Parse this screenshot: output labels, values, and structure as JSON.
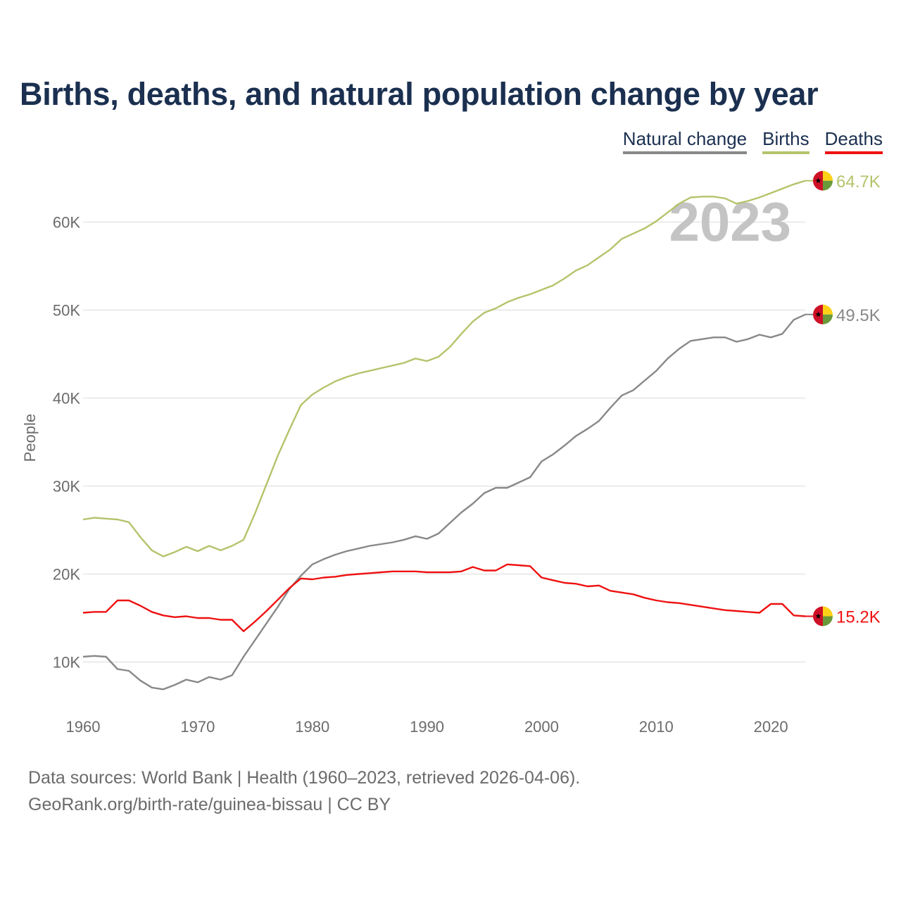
{
  "title": "Births, deaths, and natural population change by year",
  "legend": {
    "natural_change": "Natural change",
    "births": "Births",
    "deaths": "Deaths"
  },
  "colors": {
    "natural_change": "#888888",
    "births": "#b3c46b",
    "deaths": "#ee1111",
    "title": "#1b3050",
    "grid": "#e6e6e6",
    "year_watermark": "#c4c4c4",
    "flag_red": "#ce1126",
    "flag_yellow": "#fcd116",
    "flag_green": "#6a9a3a",
    "flag_star": "#000000"
  },
  "year_watermark": "2023",
  "chart_data": {
    "type": "line",
    "title": "Births, deaths, and natural population change by year",
    "xlabel": "",
    "ylabel": "People",
    "xlim": [
      1960,
      2023
    ],
    "ylim": [
      3000,
      67000
    ],
    "x_ticks": [
      1960,
      1970,
      1980,
      1990,
      2000,
      2010,
      2020
    ],
    "y_ticks": [
      10000,
      20000,
      30000,
      40000,
      50000,
      60000
    ],
    "y_tick_labels": [
      "10K",
      "20K",
      "30K",
      "40K",
      "50K",
      "60K"
    ],
    "x": [
      1960,
      1961,
      1962,
      1963,
      1964,
      1965,
      1966,
      1967,
      1968,
      1969,
      1970,
      1971,
      1972,
      1973,
      1974,
      1975,
      1976,
      1977,
      1978,
      1979,
      1980,
      1981,
      1982,
      1983,
      1984,
      1985,
      1986,
      1987,
      1988,
      1989,
      1990,
      1991,
      1992,
      1993,
      1994,
      1995,
      1996,
      1997,
      1998,
      1999,
      2000,
      2001,
      2002,
      2003,
      2004,
      2005,
      2006,
      2007,
      2008,
      2009,
      2010,
      2011,
      2012,
      2013,
      2014,
      2015,
      2016,
      2017,
      2018,
      2019,
      2020,
      2021,
      2022,
      2023
    ],
    "series": [
      {
        "name": "Births",
        "end_label": "64.7K",
        "values": [
          26200,
          26400,
          26300,
          26200,
          25900,
          24200,
          22700,
          22000,
          22500,
          23100,
          22600,
          23200,
          22700,
          23200,
          23900,
          26900,
          30200,
          33500,
          36400,
          39200,
          40400,
          41200,
          41900,
          42400,
          42800,
          43100,
          43400,
          43700,
          44000,
          44500,
          44200,
          44700,
          45800,
          47300,
          48700,
          49700,
          50200,
          50900,
          51400,
          51800,
          52300,
          52800,
          53600,
          54500,
          55100,
          56000,
          56900,
          58100,
          58700,
          59300,
          60100,
          61100,
          62100,
          62800,
          62900,
          62900,
          62700,
          62100,
          62400,
          62800,
          63300,
          63800,
          64300,
          64700
        ]
      },
      {
        "name": "Natural change",
        "end_label": "49.5K",
        "values": [
          10600,
          10700,
          10600,
          9200,
          9000,
          7900,
          7100,
          6900,
          7400,
          8000,
          7700,
          8300,
          8000,
          8500,
          10600,
          12500,
          14400,
          16300,
          18300,
          19800,
          21100,
          21700,
          22200,
          22600,
          22900,
          23200,
          23400,
          23600,
          23900,
          24300,
          24000,
          24600,
          25800,
          27000,
          28000,
          29200,
          29800,
          29800,
          30400,
          31000,
          32800,
          33600,
          34600,
          35700,
          36500,
          37400,
          38900,
          40300,
          40900,
          42000,
          43100,
          44500,
          45600,
          46500,
          46700,
          46900,
          46900,
          46400,
          46700,
          47200,
          46900,
          47300,
          48900,
          49500
        ]
      },
      {
        "name": "Deaths",
        "end_label": "15.2K",
        "values": [
          15600,
          15700,
          15700,
          17000,
          17000,
          16400,
          15700,
          15300,
          15100,
          15200,
          15000,
          15000,
          14800,
          14800,
          13500,
          14600,
          15800,
          17100,
          18400,
          19500,
          19400,
          19600,
          19700,
          19900,
          20000,
          20100,
          20200,
          20300,
          20300,
          20300,
          20200,
          20200,
          20200,
          20300,
          20800,
          20400,
          20400,
          21100,
          21000,
          20900,
          19600,
          19300,
          19000,
          18900,
          18600,
          18700,
          18100,
          17900,
          17700,
          17300,
          17000,
          16800,
          16700,
          16500,
          16300,
          16100,
          15900,
          15800,
          15700,
          15600,
          16600,
          16600,
          15300,
          15200
        ]
      }
    ]
  },
  "footer": {
    "sources": "Data sources: World Bank | Health (1960–2023, retrieved 2026-04-06).",
    "credit": "GeoRank.org/birth-rate/guinea-bissau | CC BY"
  }
}
